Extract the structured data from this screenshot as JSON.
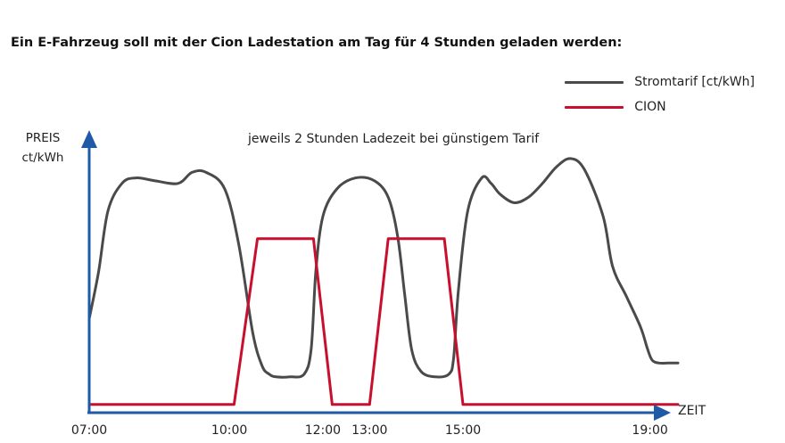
{
  "chart_data": {
    "type": "line",
    "title": "Ein E-Fahrzeug soll mit der Cion Ladestation am Tag für 4 Stunden geladen werden:",
    "ylabel": "PREIS\nct/kWh",
    "xlabel": "ZEIT",
    "annotation": "jeweils 2 Stunden Ladezeit bei günstigem Tarif",
    "x_tick_labels": [
      "07:00",
      "10:00",
      "12:00",
      "13:00",
      "15:00",
      "19:00"
    ],
    "x_ticks_hours": [
      7,
      10,
      12,
      13,
      15,
      19
    ],
    "xlim_hours": [
      7,
      19.6
    ],
    "ylim": [
      0,
      1
    ],
    "y_tick_labels": [],
    "grid": false,
    "legend_position": "top-right",
    "series": [
      {
        "name": "Stromtarif [ct/kWh]",
        "color": "#4a4a4a",
        "style": "smooth",
        "x_hours": [
          7.0,
          7.2,
          7.4,
          7.7,
          8.0,
          8.4,
          8.9,
          9.2,
          9.5,
          9.9,
          10.2,
          10.5,
          10.7,
          10.85,
          11.0,
          11.3,
          11.6,
          11.75,
          11.85,
          12.0,
          12.3,
          12.7,
          13.1,
          13.4,
          13.6,
          13.75,
          13.9,
          14.1,
          14.4,
          14.7,
          14.8,
          14.9,
          15.1,
          15.4,
          15.6,
          15.8,
          16.1,
          16.4,
          16.7,
          17.0,
          17.3,
          17.6,
          18.0,
          18.2,
          18.5,
          18.8,
          18.95,
          19.05,
          19.2,
          19.4,
          19.6
        ],
        "values": [
          0.33,
          0.5,
          0.72,
          0.82,
          0.84,
          0.83,
          0.82,
          0.86,
          0.86,
          0.8,
          0.6,
          0.28,
          0.16,
          0.13,
          0.12,
          0.12,
          0.13,
          0.22,
          0.5,
          0.7,
          0.8,
          0.84,
          0.83,
          0.77,
          0.63,
          0.42,
          0.22,
          0.14,
          0.12,
          0.13,
          0.19,
          0.43,
          0.72,
          0.84,
          0.82,
          0.78,
          0.75,
          0.77,
          0.82,
          0.88,
          0.91,
          0.87,
          0.7,
          0.52,
          0.41,
          0.3,
          0.22,
          0.18,
          0.17,
          0.17,
          0.17
        ]
      },
      {
        "name": "CION",
        "color": "#c8102e",
        "style": "linear",
        "x_hours": [
          7.0,
          10.1,
          10.6,
          11.8,
          12.2,
          13.0,
          13.4,
          14.6,
          15.0,
          19.6
        ],
        "values": [
          0.02,
          0.02,
          0.62,
          0.62,
          0.02,
          0.02,
          0.62,
          0.62,
          0.02,
          0.02
        ]
      }
    ]
  },
  "colors": {
    "axis": "#1f5aa6",
    "price_line": "#4a4a4a",
    "cion_line": "#c8102e"
  }
}
